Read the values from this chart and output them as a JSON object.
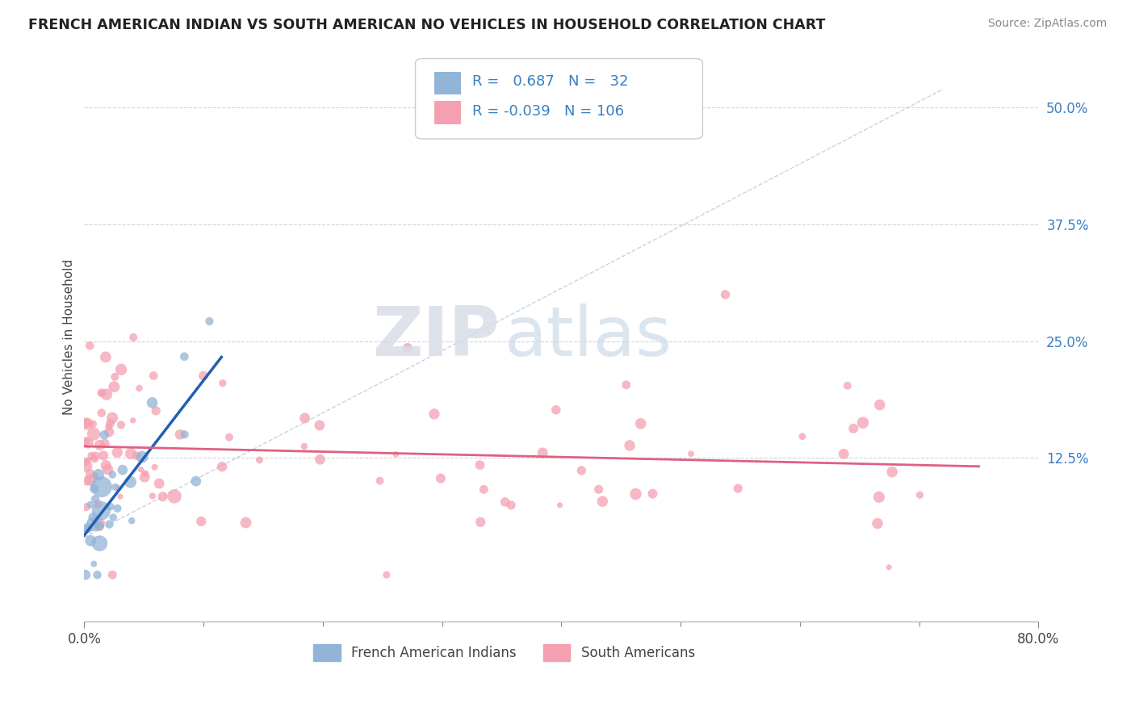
{
  "title": "FRENCH AMERICAN INDIAN VS SOUTH AMERICAN NO VEHICLES IN HOUSEHOLD CORRELATION CHART",
  "source": "Source: ZipAtlas.com",
  "ylabel": "No Vehicles in Household",
  "xlim": [
    0,
    0.8
  ],
  "ylim": [
    -0.05,
    0.56
  ],
  "y_ticks": [
    0.125,
    0.25,
    0.375,
    0.5
  ],
  "y_tick_labels": [
    "12.5%",
    "25.0%",
    "37.5%",
    "50.0%"
  ],
  "grid_color": "#d0d0d8",
  "background_color": "#ffffff",
  "blue_color": "#92b4d7",
  "pink_color": "#f4a0b0",
  "blue_line_color": "#2060b0",
  "pink_line_color": "#e06080",
  "blue_R": 0.687,
  "blue_N": 32,
  "pink_R": -0.039,
  "pink_N": 106,
  "legend_label_blue": "French American Indians",
  "legend_label_pink": "South Americans",
  "watermark_zip": "ZIP",
  "watermark_atlas": "atlas"
}
